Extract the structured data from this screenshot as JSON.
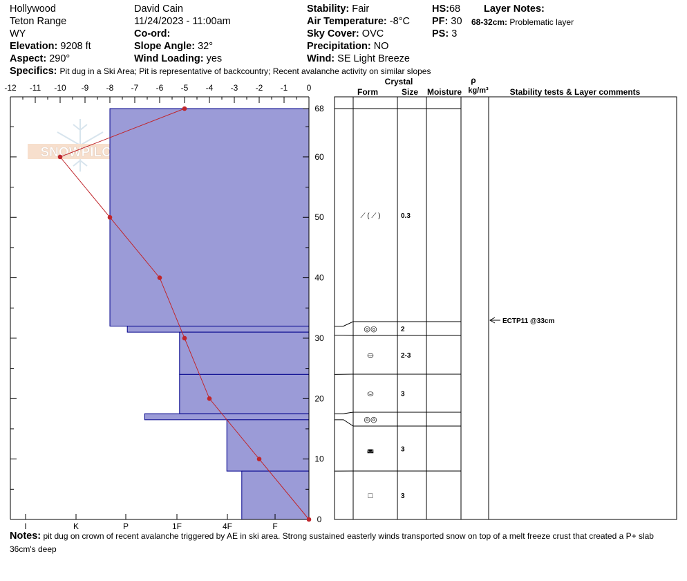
{
  "header": {
    "location": "Hollywood",
    "range": "Teton Range",
    "state": "WY",
    "elevation_label": "Elevation:",
    "elevation": "9208 ft",
    "aspect_label": "Aspect:",
    "aspect": "290°",
    "observer": "David Cain",
    "datetime": "11/24/2023 - 11:00am",
    "coord_label": "Co-ord:",
    "slope_label": "Slope Angle:",
    "slope": "32°",
    "wind_loading_label": "Wind Loading:",
    "wind_loading": "yes",
    "stability_label": "Stability:",
    "stability": "Fair",
    "air_temp_label": "Air Temperature:",
    "air_temp": "-8°C",
    "sky_label": "Sky Cover:",
    "sky": "OVC",
    "precip_label": "Precipitation:",
    "precip": "NO",
    "wind_label": "Wind:",
    "wind": "SE  Light Breeze",
    "hs_label": "HS:",
    "hs": "68",
    "pf_label": "PF:",
    "pf": "30",
    "ps_label": "PS:",
    "ps": "3",
    "layer_notes_label": "Layer Notes:",
    "layer_note_range": "68-32cm:",
    "layer_note_text": "Problematic layer",
    "specifics_label": "Specifics:",
    "specifics": "Pit dug in a Ski Area;  Pit is representative of backcountry;  Recent avalanche activity on similar slopes"
  },
  "logo_text": "SNOWPILOT",
  "columns": {
    "crystal": "Crystal",
    "form": "Form",
    "size": "Size",
    "moisture": "Moisture",
    "rho": "ρ",
    "density_unit": "kg/m³",
    "stability": "Stability tests & Layer comments"
  },
  "chart_data": {
    "type": "snow_profile",
    "temperature_axis": {
      "ticks": [
        "-12",
        "-11",
        "-10",
        "-9",
        "-8",
        "-7",
        "-6",
        "-5",
        "-4",
        "-3",
        "-2",
        "-1",
        "0"
      ],
      "range": [
        -12,
        0
      ]
    },
    "hardness_axis": {
      "labels": [
        "I",
        "K",
        "P",
        "1F",
        "4F",
        "F"
      ]
    },
    "depth_axis": {
      "ticks": [
        "0",
        "10",
        "20",
        "30",
        "40",
        "50",
        "60",
        "68"
      ],
      "range": [
        0,
        68
      ]
    },
    "temperature_profile": [
      {
        "depth": 68,
        "temp": -5
      },
      {
        "depth": 60,
        "temp": -10
      },
      {
        "depth": 50,
        "temp": -8
      },
      {
        "depth": 40,
        "temp": -6
      },
      {
        "depth": 30,
        "temp": -5
      },
      {
        "depth": 20,
        "temp": -4
      },
      {
        "depth": 10,
        "temp": -2
      },
      {
        "depth": 0,
        "temp": 0
      }
    ],
    "hardness_layers": [
      {
        "top": 68,
        "bottom": 32,
        "hardness": "P"
      },
      {
        "top": 32,
        "bottom": 31,
        "hardness": "P+"
      },
      {
        "top": 31,
        "bottom": 24,
        "hardness": "1F"
      },
      {
        "top": 24,
        "bottom": 17.5,
        "hardness": "1F"
      },
      {
        "top": 17.5,
        "bottom": 16.5,
        "hardness": "1F+"
      },
      {
        "top": 16.5,
        "bottom": 8,
        "hardness": "4F-"
      },
      {
        "top": 8,
        "bottom": 0,
        "hardness": "4F"
      }
    ],
    "layers": [
      {
        "top": 68,
        "bottom": 32,
        "form": "⟋ ( ⟋ )",
        "size": "0.3"
      },
      {
        "top": 32,
        "bottom": 30.5,
        "form": "◎◎",
        "size": "2"
      },
      {
        "top": 30.5,
        "bottom": 24,
        "form": "⛀",
        "size": "2-3"
      },
      {
        "top": 24,
        "bottom": 17.5,
        "form": "⛀",
        "size": "3"
      },
      {
        "top": 17.5,
        "bottom": 16.5,
        "form": "◎◎",
        "size": ""
      },
      {
        "top": 16.5,
        "bottom": 8,
        "form": "◛",
        "size": "3"
      },
      {
        "top": 8,
        "bottom": 0,
        "form": "□",
        "size": "3"
      }
    ],
    "stability_tests": [
      {
        "depth": 33,
        "label": "ECTP11 @33cm"
      }
    ],
    "colors": {
      "hardness_fill": "#9b9bd7",
      "hardness_stroke": "#00008b",
      "temp_line": "#c0262c"
    }
  },
  "notes": {
    "label": "Notes:",
    "text": "pit dug on crown of recent avalanche triggered by AE in ski area.  Strong sustained easterly winds transported snow on top of a melt freeze crust that created a P+ slab 36cm's deep"
  }
}
